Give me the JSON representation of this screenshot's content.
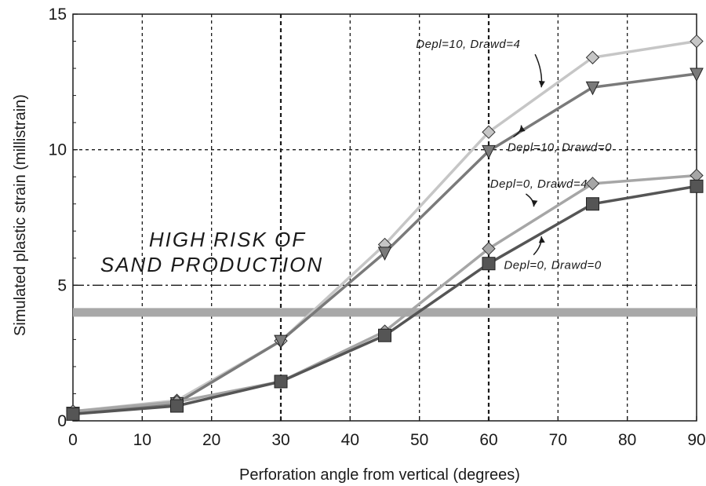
{
  "chart_data": {
    "type": "line",
    "xlabel": "Perforation angle from vertical (degrees)",
    "ylabel": "Simulated plastic strain (millistrain)",
    "xlim": [
      0,
      90
    ],
    "ylim": [
      0,
      15
    ],
    "x_ticks": [
      0,
      10,
      20,
      30,
      40,
      50,
      60,
      70,
      80,
      90
    ],
    "y_ticks": [
      0,
      5,
      10,
      15
    ],
    "grid": true,
    "x": [
      0,
      15,
      30,
      45,
      60,
      75,
      90
    ],
    "series": [
      {
        "name": "Depl=10, Drawd=4",
        "marker": "diamond",
        "color": "#c6c6c6",
        "values": [
          0.35,
          0.75,
          2.95,
          6.5,
          10.65,
          13.4,
          14.0
        ]
      },
      {
        "name": "Depl=10, Drawd=0",
        "marker": "triangle-down",
        "color": "#7a7a7a",
        "values": [
          0.3,
          0.65,
          2.95,
          6.2,
          9.95,
          12.3,
          12.8
        ]
      },
      {
        "name": "Depl=0, Drawd=4",
        "marker": "diamond",
        "color": "#a6a6a6",
        "values": [
          0.35,
          0.7,
          1.45,
          3.3,
          6.35,
          8.75,
          9.05
        ]
      },
      {
        "name": "Depl=0, Drawd=0",
        "marker": "square",
        "color": "#555555",
        "values": [
          0.25,
          0.55,
          1.45,
          3.15,
          5.8,
          8.0,
          8.65
        ]
      }
    ],
    "threshold": {
      "value": 4,
      "color": "#a8a8a8"
    },
    "reference_line": {
      "value": 5,
      "style": "dash-dot"
    },
    "annotations": [
      {
        "text": "HIGH RISK OF",
        "x": 34,
        "y": 6.6
      },
      {
        "text": "SAND PRODUCTION",
        "x": 34,
        "y": 5.6
      }
    ],
    "series_labels": [
      {
        "series": 0,
        "text": "Depl=10, Drawd=4",
        "x": 49.5,
        "y": 13.75,
        "point_x": 67.6,
        "point_y": 12.3
      },
      {
        "series": 1,
        "text": "Depl=10, Drawd=0",
        "x": 62.7,
        "y": 9.95,
        "point_x": 64.7,
        "point_y": 10.9
      },
      {
        "series": 2,
        "text": "Depl=0, Drawd=4",
        "x": 60.2,
        "y": 8.6,
        "point_x": 66.5,
        "point_y": 7.9
      },
      {
        "series": 3,
        "text": "Depl=0, Drawd=0",
        "x": 62.2,
        "y": 5.6,
        "point_x": 67.6,
        "point_y": 6.8
      }
    ]
  }
}
